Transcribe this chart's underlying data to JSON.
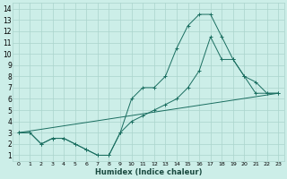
{
  "xlabel": "Humidex (Indice chaleur)",
  "bg_color": "#cceee8",
  "grid_color": "#aad4cc",
  "line_color": "#1a6e60",
  "xlim": [
    -0.5,
    23.5
  ],
  "ylim": [
    0.5,
    14.5
  ],
  "xticks": [
    0,
    1,
    2,
    3,
    4,
    5,
    6,
    7,
    8,
    9,
    10,
    11,
    12,
    13,
    14,
    15,
    16,
    17,
    18,
    19,
    20,
    21,
    22,
    23
  ],
  "yticks": [
    1,
    2,
    3,
    4,
    5,
    6,
    7,
    8,
    9,
    10,
    11,
    12,
    13,
    14
  ],
  "line1_x": [
    0,
    1,
    2,
    3,
    4,
    5,
    6,
    7,
    8,
    9,
    10,
    11,
    12,
    13,
    14,
    15,
    16,
    17,
    18,
    19,
    20,
    21,
    22,
    23
  ],
  "line1_y": [
    3,
    3,
    2,
    2.5,
    2.5,
    2,
    1.5,
    1,
    1,
    3,
    6,
    7,
    7,
    8,
    10.5,
    12.5,
    13.5,
    13.5,
    11.5,
    9.5,
    8,
    7.5,
    6.5,
    6.5
  ],
  "line2_x": [
    0,
    1,
    2,
    3,
    4,
    5,
    6,
    7,
    8,
    9,
    10,
    11,
    12,
    13,
    14,
    15,
    16,
    17,
    18,
    19,
    20,
    21,
    22,
    23
  ],
  "line2_y": [
    3,
    3,
    2,
    2.5,
    2.5,
    2,
    1.5,
    1,
    1,
    3,
    4,
    4.5,
    5,
    5.5,
    6,
    7,
    8.5,
    11.5,
    9.5,
    9.5,
    8,
    6.5,
    6.5,
    6.5
  ],
  "line3_x": [
    0,
    23
  ],
  "line3_y": [
    3,
    6.5
  ]
}
